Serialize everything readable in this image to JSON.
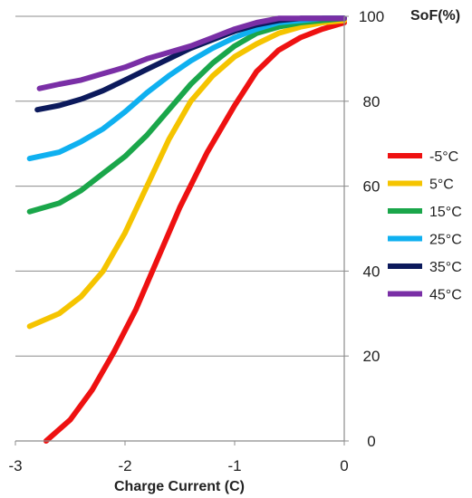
{
  "chart_data": {
    "type": "line",
    "xlabel": "Charge Current (C)",
    "ylabel": "SoF(%)",
    "xlim": [
      -3,
      0
    ],
    "ylim": [
      0,
      100
    ],
    "x_ticks": [
      "-3",
      "-2",
      "-1",
      "0"
    ],
    "y_ticks": [
      "0",
      "20",
      "40",
      "60",
      "80",
      "100"
    ],
    "grid": "horizontal",
    "legend_position": "right",
    "series": [
      {
        "name": "-5°C",
        "color": "#ee1111",
        "x": [
          -2.72,
          -2.5,
          -2.3,
          -2.1,
          -1.9,
          -1.7,
          -1.5,
          -1.25,
          -1.0,
          -0.8,
          -0.6,
          -0.4,
          -0.2,
          0.0
        ],
        "y": [
          0,
          5,
          12,
          21,
          31,
          43,
          55,
          68,
          79,
          87,
          92,
          95,
          97,
          98.5
        ]
      },
      {
        "name": "5°C",
        "color": "#f5c400",
        "x": [
          -2.87,
          -2.6,
          -2.4,
          -2.2,
          -2.0,
          -1.8,
          -1.6,
          -1.4,
          -1.2,
          -1.0,
          -0.8,
          -0.6,
          -0.4,
          -0.2,
          0.0
        ],
        "y": [
          27,
          30,
          34,
          40,
          49,
          60,
          71,
          80,
          86,
          90.5,
          93.5,
          96,
          97.5,
          98.5,
          99
        ]
      },
      {
        "name": "15°C",
        "color": "#1aa64a",
        "x": [
          -2.87,
          -2.6,
          -2.4,
          -2.2,
          -2.0,
          -1.8,
          -1.6,
          -1.4,
          -1.2,
          -1.0,
          -0.8,
          -0.6,
          -0.4,
          -0.2,
          0.0
        ],
        "y": [
          54,
          56,
          59,
          63,
          67,
          72,
          78,
          84,
          89,
          93,
          96,
          97.5,
          98.5,
          99,
          99.5
        ]
      },
      {
        "name": "25°C",
        "color": "#0fb0f0",
        "x": [
          -2.87,
          -2.6,
          -2.4,
          -2.2,
          -2.0,
          -1.8,
          -1.6,
          -1.4,
          -1.2,
          -1.0,
          -0.8,
          -0.6,
          -0.4,
          -0.2,
          0.0
        ],
        "y": [
          66.5,
          68,
          70.5,
          73.5,
          77.5,
          82,
          86,
          89.5,
          92.5,
          95,
          97,
          98.5,
          99,
          99.5,
          99.5
        ]
      },
      {
        "name": "35°C",
        "color": "#0c1a5c",
        "x": [
          -2.8,
          -2.6,
          -2.4,
          -2.2,
          -2.0,
          -1.8,
          -1.6,
          -1.4,
          -1.2,
          -1.0,
          -0.8,
          -0.6,
          -0.4,
          -0.2,
          0.0
        ],
        "y": [
          78,
          79,
          80.5,
          82.5,
          85,
          87.5,
          90,
          92.5,
          94.5,
          96.5,
          98,
          99,
          99.5,
          99.5,
          99.5
        ]
      },
      {
        "name": "45°C",
        "color": "#7a2fa6",
        "x": [
          -2.78,
          -2.6,
          -2.4,
          -2.2,
          -2.0,
          -1.8,
          -1.6,
          -1.4,
          -1.2,
          -1.0,
          -0.8,
          -0.6,
          -0.4,
          -0.2,
          0.0
        ],
        "y": [
          83,
          84,
          85,
          86.5,
          88,
          90,
          91.5,
          93,
          95,
          97,
          98.5,
          99.5,
          99.5,
          99.5,
          99.5
        ]
      }
    ]
  }
}
